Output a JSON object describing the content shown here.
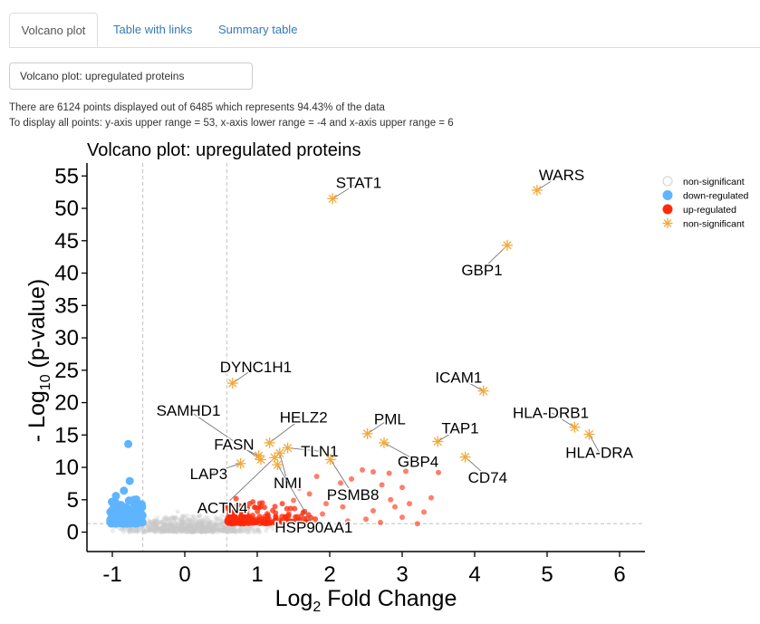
{
  "tabs": [
    {
      "label": "Volcano plot"
    },
    {
      "label": "Table with links"
    },
    {
      "label": "Summary table"
    }
  ],
  "plot_select": {
    "value": "Volcano plot: upregulated proteins"
  },
  "info": {
    "line1": "There are 6124 points displayed out of 6485 which represents 94.43% of the data",
    "line2": "To display all points: y-axis upper range = 53, x-axis lower range = -4 and x-axis upper range = 6"
  },
  "chart_data": {
    "type": "scatter",
    "title": "Volcano plot: upregulated proteins",
    "xlabel": "Log2 Fold Change",
    "ylabel": "- Log10 (p-value)",
    "xlim": [
      -1.35,
      6.35
    ],
    "ylim": [
      -3,
      57
    ],
    "xticks": [
      -1,
      0,
      1,
      2,
      3,
      4,
      5,
      6
    ],
    "yticks": [
      0,
      5,
      10,
      15,
      20,
      25,
      30,
      35,
      40,
      45,
      50,
      55
    ],
    "vlines": [
      -0.58,
      0.58
    ],
    "hline": 1.3,
    "legend": {
      "position": "right",
      "entries": [
        {
          "label": "non-significant",
          "marker": "open-circle",
          "color": "#d9d9d9"
        },
        {
          "label": "down-regulated",
          "marker": "circle",
          "color": "#5fb4ff"
        },
        {
          "label": "up-regulated",
          "marker": "circle",
          "color": "#ff2a0a"
        },
        {
          "label": "non-significant",
          "marker": "asterisk",
          "color": "#f2a93b"
        }
      ]
    },
    "colors": {
      "nonsig": "#c8c8c8",
      "down": "#5fb4ff",
      "up": "#ff2a0a",
      "labeled": "#f2a93b"
    },
    "labeled_points": [
      {
        "label": "WARS",
        "x": 4.86,
        "y": 52.8,
        "lx": 5.2,
        "ly": 55.2
      },
      {
        "label": "STAT1",
        "x": 2.04,
        "y": 51.5,
        "lx": 2.4,
        "ly": 54.0
      },
      {
        "label": "GBP1",
        "x": 4.45,
        "y": 44.3,
        "lx": 4.1,
        "ly": 40.5
      },
      {
        "label": "DYNC1H1",
        "x": 0.66,
        "y": 23.0,
        "lx": 0.98,
        "ly": 25.5
      },
      {
        "label": "ICAM1",
        "x": 4.12,
        "y": 21.8,
        "lx": 3.78,
        "ly": 23.9
      },
      {
        "label": "HLA-DRB1",
        "x": 5.38,
        "y": 16.2,
        "lx": 5.05,
        "ly": 18.5
      },
      {
        "label": "HLA-DRA",
        "x": 5.58,
        "y": 15.1,
        "lx": 5.72,
        "ly": 12.3
      },
      {
        "label": "SAMHD1",
        "x": 1.05,
        "y": 11.2,
        "lx": 0.05,
        "ly": 18.8
      },
      {
        "label": "HELZ2",
        "x": 1.17,
        "y": 13.8,
        "lx": 1.64,
        "ly": 17.8
      },
      {
        "label": "PML",
        "x": 2.52,
        "y": 15.2,
        "lx": 2.83,
        "ly": 17.5
      },
      {
        "label": "TAP1",
        "x": 3.49,
        "y": 14.0,
        "lx": 3.8,
        "ly": 16.1
      },
      {
        "label": "FASN",
        "x": 1.02,
        "y": 11.8,
        "lx": 0.68,
        "ly": 13.6
      },
      {
        "label": "TLN1",
        "x": 1.42,
        "y": 13.0,
        "lx": 1.86,
        "ly": 12.5
      },
      {
        "label": "GBP4",
        "x": 2.75,
        "y": 13.8,
        "lx": 3.22,
        "ly": 10.9
      },
      {
        "label": "CD74",
        "x": 3.87,
        "y": 11.6,
        "lx": 4.18,
        "ly": 8.5
      },
      {
        "label": "LAP3",
        "x": 0.77,
        "y": 10.6,
        "lx": 0.33,
        "ly": 9.0
      },
      {
        "label": "PSMB8",
        "x": 2.01,
        "y": 11.2,
        "lx": 2.32,
        "ly": 5.8
      },
      {
        "label": "NMI",
        "x": 1.31,
        "y": 12.2,
        "lx": 1.42,
        "ly": 7.6
      },
      {
        "label": "ACTN4",
        "x": 1.24,
        "y": 11.5,
        "lx": 0.52,
        "ly": 3.8
      },
      {
        "label": "HSP90AA1",
        "x": 1.28,
        "y": 10.4,
        "lx": 1.78,
        "ly": 0.8
      }
    ],
    "down_points": [
      [
        -0.78,
        13.6
      ],
      [
        -0.76,
        7.9
      ],
      [
        -0.84,
        6.4
      ],
      [
        -0.95,
        5.6
      ],
      [
        -0.7,
        5.0
      ],
      [
        -1.0,
        4.6
      ],
      [
        -0.88,
        4.2
      ],
      [
        -0.66,
        3.8
      ],
      [
        -0.97,
        3.4
      ],
      [
        -0.74,
        3.0
      ],
      [
        -0.92,
        2.7
      ],
      [
        -0.6,
        2.4
      ],
      [
        -0.85,
        2.1
      ],
      [
        -1.02,
        1.8
      ],
      [
        -0.68,
        1.6
      ],
      [
        -0.8,
        1.4
      ]
    ],
    "up_points": [
      [
        2.45,
        9.6
      ],
      [
        2.6,
        9.3
      ],
      [
        2.82,
        9.1
      ],
      [
        3.05,
        9.4
      ],
      [
        3.5,
        9.2
      ],
      [
        2.3,
        8.2
      ],
      [
        2.72,
        7.3
      ],
      [
        3.0,
        6.9
      ],
      [
        2.0,
        6.3
      ],
      [
        2.38,
        5.4
      ],
      [
        2.84,
        5.0
      ],
      [
        3.1,
        4.4
      ],
      [
        1.72,
        5.9
      ],
      [
        1.5,
        4.9
      ],
      [
        2.18,
        3.9
      ],
      [
        2.6,
        3.3
      ],
      [
        3.21,
        1.3
      ],
      [
        3.0,
        2.3
      ],
      [
        2.5,
        2.0
      ],
      [
        1.9,
        2.8
      ],
      [
        1.68,
        2.1
      ],
      [
        2.25,
        1.7
      ],
      [
        3.3,
        3.1
      ],
      [
        2.9,
        3.9
      ],
      [
        2.15,
        7.6
      ],
      [
        1.58,
        6.8
      ],
      [
        1.82,
        8.6
      ],
      [
        3.4,
        5.3
      ],
      [
        2.7,
        1.5
      ],
      [
        1.95,
        4.4
      ]
    ]
  }
}
